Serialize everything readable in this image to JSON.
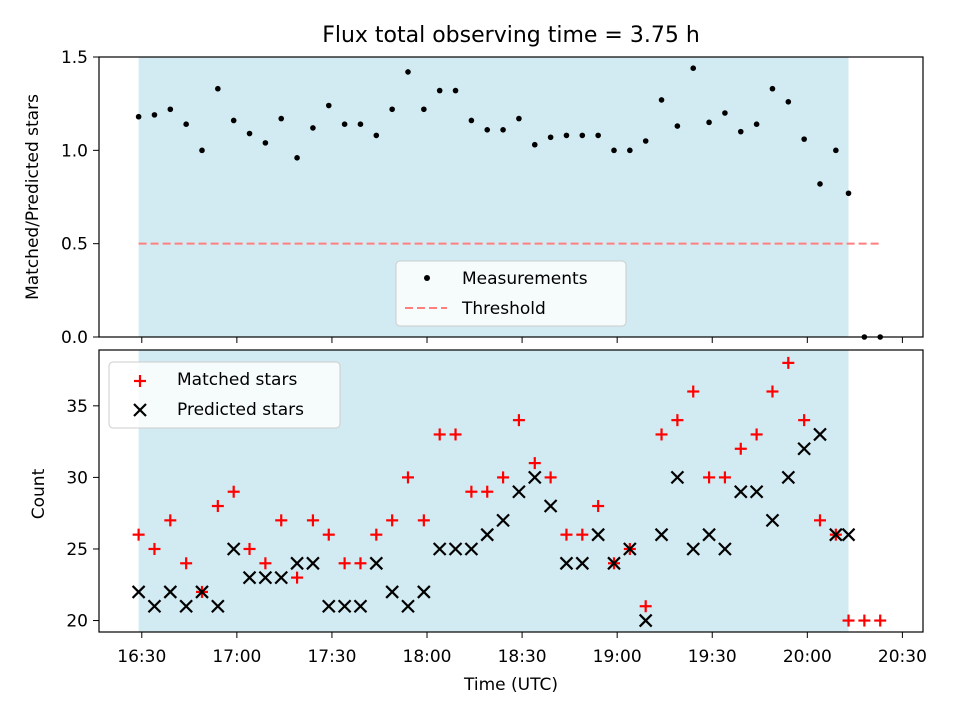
{
  "title": "Flux total observing time = 3.75 h",
  "colors": {
    "background_span": "#add8e6",
    "measurement": "#000000",
    "threshold": "#ff7f7f",
    "matched": "#ff0000",
    "predicted": "#000000"
  },
  "chart_data": [
    {
      "type": "scatter",
      "ylabel": "Matched/Predicted stars",
      "xlabel": "",
      "ylim": [
        0,
        1.5
      ],
      "yticks": [
        "0.0",
        "0.5",
        "1.0",
        "1.5"
      ],
      "shaded_span": [
        "16:29",
        "20:13"
      ],
      "legend": {
        "placement": "lower-center",
        "entries": [
          "Measurements",
          "Threshold"
        ]
      },
      "threshold": {
        "name": "Threshold",
        "value": 0.5,
        "x_range": [
          "16:29",
          "20:23"
        ],
        "style": "dashed"
      },
      "series": [
        {
          "name": "Measurements",
          "x": [
            "16:29",
            "16:34",
            "16:39",
            "16:44",
            "16:49",
            "16:54",
            "16:59",
            "17:04",
            "17:09",
            "17:14",
            "17:19",
            "17:24",
            "17:29",
            "17:34",
            "17:39",
            "17:44",
            "17:49",
            "17:54",
            "17:59",
            "18:04",
            "18:09",
            "18:14",
            "18:19",
            "18:24",
            "18:29",
            "18:34",
            "18:39",
            "18:44",
            "18:49",
            "18:54",
            "18:59",
            "19:04",
            "19:09",
            "19:14",
            "19:19",
            "19:24",
            "19:29",
            "19:34",
            "19:39",
            "19:44",
            "19:49",
            "19:54",
            "19:59",
            "20:04",
            "20:09",
            "20:13",
            "20:18",
            "20:23"
          ],
          "values": [
            1.18,
            1.19,
            1.22,
            1.14,
            1.0,
            1.33,
            1.16,
            1.09,
            1.04,
            1.17,
            0.96,
            1.12,
            1.24,
            1.14,
            1.14,
            1.08,
            1.22,
            1.42,
            1.22,
            1.32,
            1.32,
            1.16,
            1.11,
            1.11,
            1.17,
            1.03,
            1.07,
            1.08,
            1.08,
            1.08,
            1.0,
            1.0,
            1.05,
            1.27,
            1.13,
            1.44,
            1.15,
            1.2,
            1.1,
            1.14,
            1.33,
            1.26,
            1.06,
            0.82,
            1.0,
            0.77,
            0.0,
            0.0
          ]
        }
      ]
    },
    {
      "type": "scatter",
      "ylabel": "Count",
      "xlabel": "Time (UTC)",
      "ylim": [
        19.2,
        38.9
      ],
      "yticks": [
        "20",
        "25",
        "30",
        "35"
      ],
      "xticks": [
        "16:30",
        "17:00",
        "17:30",
        "18:00",
        "18:30",
        "19:00",
        "19:30",
        "20:00",
        "20:30"
      ],
      "shaded_span": [
        "16:29",
        "20:13"
      ],
      "legend": {
        "placement": "top-left",
        "entries": [
          "Matched stars",
          "Predicted stars"
        ]
      },
      "series": [
        {
          "name": "Matched stars",
          "marker": "plus",
          "x": [
            "16:29",
            "16:34",
            "16:39",
            "16:44",
            "16:49",
            "16:54",
            "16:59",
            "17:04",
            "17:09",
            "17:14",
            "17:19",
            "17:24",
            "17:29",
            "17:34",
            "17:39",
            "17:44",
            "17:49",
            "17:54",
            "17:59",
            "18:04",
            "18:09",
            "18:14",
            "18:19",
            "18:24",
            "18:29",
            "18:34",
            "18:39",
            "18:44",
            "18:49",
            "18:54",
            "18:59",
            "19:04",
            "19:09",
            "19:14",
            "19:19",
            "19:24",
            "19:29",
            "19:34",
            "19:39",
            "19:44",
            "19:49",
            "19:54",
            "19:59",
            "20:04",
            "20:09",
            "20:13",
            "20:18",
            "20:23"
          ],
          "values": [
            26,
            25,
            27,
            24,
            22,
            28,
            29,
            25,
            24,
            27,
            23,
            27,
            26,
            24,
            24,
            26,
            27,
            30,
            27,
            33,
            33,
            29,
            29,
            30,
            34,
            31,
            30,
            26,
            26,
            28,
            24,
            25,
            21,
            33,
            34,
            36,
            30,
            30,
            32,
            33,
            36,
            38,
            34,
            27,
            26,
            20,
            20,
            20
          ]
        },
        {
          "name": "Predicted stars",
          "marker": "x",
          "x": [
            "16:29",
            "16:34",
            "16:39",
            "16:44",
            "16:49",
            "16:54",
            "16:59",
            "17:04",
            "17:09",
            "17:14",
            "17:19",
            "17:24",
            "17:29",
            "17:34",
            "17:39",
            "17:44",
            "17:49",
            "17:54",
            "17:59",
            "18:04",
            "18:09",
            "18:14",
            "18:19",
            "18:24",
            "18:29",
            "18:34",
            "18:39",
            "18:44",
            "18:49",
            "18:54",
            "18:59",
            "19:04",
            "19:09",
            "19:14",
            "19:19",
            "19:24",
            "19:29",
            "19:34",
            "19:39",
            "19:44",
            "19:49",
            "19:54",
            "19:59",
            "20:04",
            "20:09",
            "20:13"
          ],
          "values": [
            22,
            21,
            22,
            21,
            22,
            21,
            25,
            23,
            23,
            23,
            24,
            24,
            21,
            21,
            21,
            24,
            22,
            21,
            22,
            25,
            25,
            25,
            26,
            27,
            29,
            30,
            28,
            24,
            24,
            26,
            24,
            25,
            20,
            26,
            30,
            25,
            26,
            25,
            29,
            29,
            27,
            30,
            32,
            33,
            26,
            26
          ]
        }
      ]
    }
  ]
}
